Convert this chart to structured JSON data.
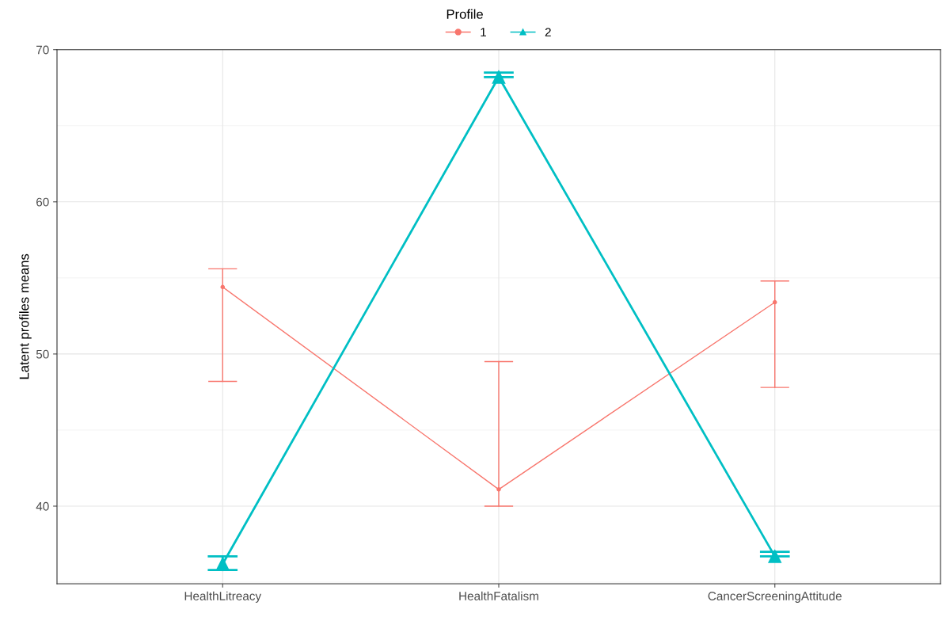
{
  "chart_data": {
    "type": "line",
    "ylabel": "Latent profiles means",
    "legend_title": "Profile",
    "legend": "top",
    "grid": true,
    "categories": [
      "HealthLitreacy",
      "HealthFatalism",
      "CancerScreeningAttitude"
    ],
    "ylim": [
      34.9,
      70
    ],
    "yticks": [
      40,
      50,
      60,
      70
    ],
    "series": [
      {
        "name": "1",
        "color": "#f8766d",
        "marker": "circle",
        "values": [
          54.4,
          41.1,
          53.4
        ],
        "errors": [
          [
            48.2,
            55.6
          ],
          [
            40.0,
            49.5
          ],
          [
            47.8,
            54.8
          ]
        ]
      },
      {
        "name": "2",
        "color": "#00bfc4",
        "marker": "triangle",
        "values": [
          36.2,
          68.2,
          36.7
        ],
        "errors": [
          [
            35.8,
            36.7
          ],
          [
            68.2,
            68.5
          ],
          [
            36.7,
            37.0
          ]
        ]
      }
    ]
  }
}
